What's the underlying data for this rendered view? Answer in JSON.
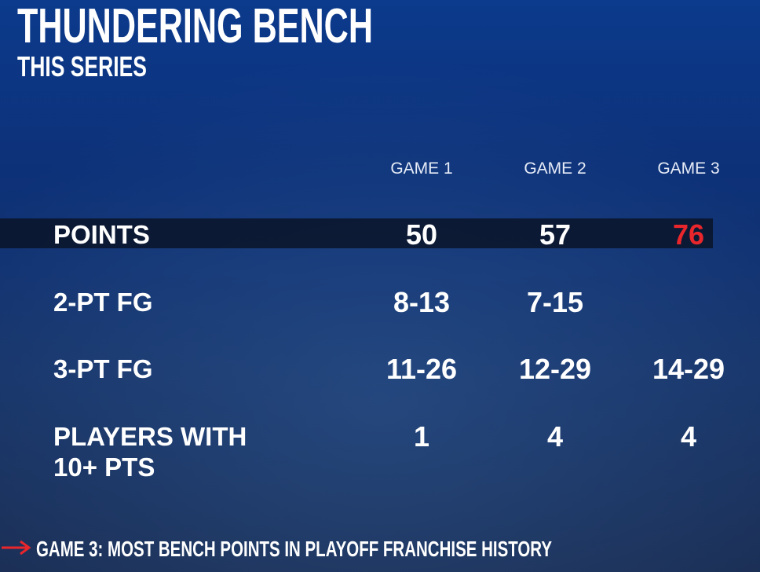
{
  "header": {
    "title": "THUNDERING BENCH",
    "subtitle": "THIS SERIES"
  },
  "table": {
    "columns": [
      "GAME 1",
      "GAME 2",
      "GAME 3"
    ],
    "rows": [
      {
        "label": "POINTS",
        "values": [
          "50",
          "57",
          "76"
        ]
      },
      {
        "label": "2-PT FG",
        "values": [
          "8-13",
          "7-15",
          null
        ]
      },
      {
        "label": "3-PT FG",
        "values": [
          "11-26",
          "12-29",
          "14-29"
        ]
      },
      {
        "label": [
          "PLAYERS WITH",
          "10+ PTS"
        ],
        "values": [
          "1",
          "4",
          "4"
        ]
      }
    ]
  },
  "footer": "GAME 3: MOST BENCH POINTS IN PLAYOFF FRANCHISE HISTORY"
}
